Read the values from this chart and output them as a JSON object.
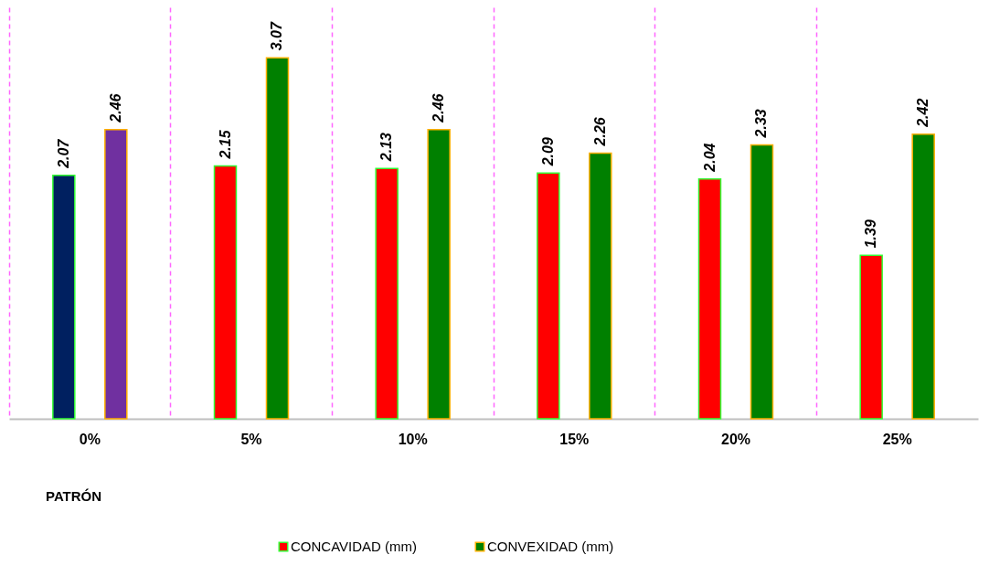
{
  "chart_data": {
    "type": "bar",
    "categories": [
      "0%",
      "5%",
      "10%",
      "15%",
      "20%",
      "25%"
    ],
    "series": [
      {
        "name": "CONCAVIDAD (mm)",
        "color": "#ff0000",
        "colors": [
          "#002060",
          "#ff0000",
          "#ff0000",
          "#ff0000",
          "#ff0000",
          "#ff0000"
        ],
        "values": [
          2.07,
          2.15,
          2.13,
          2.09,
          2.04,
          1.39
        ]
      },
      {
        "name": "CONVEXIDAD (mm)",
        "color": "#008000",
        "colors": [
          "#7030a0",
          "#008000",
          "#008000",
          "#008000",
          "#008000",
          "#008000"
        ],
        "values": [
          2.46,
          3.07,
          2.46,
          2.26,
          2.33,
          2.42
        ]
      }
    ],
    "data_labels": true,
    "grid": "x",
    "legend": "bottom",
    "annotations": [
      "PATRÓN"
    ]
  }
}
